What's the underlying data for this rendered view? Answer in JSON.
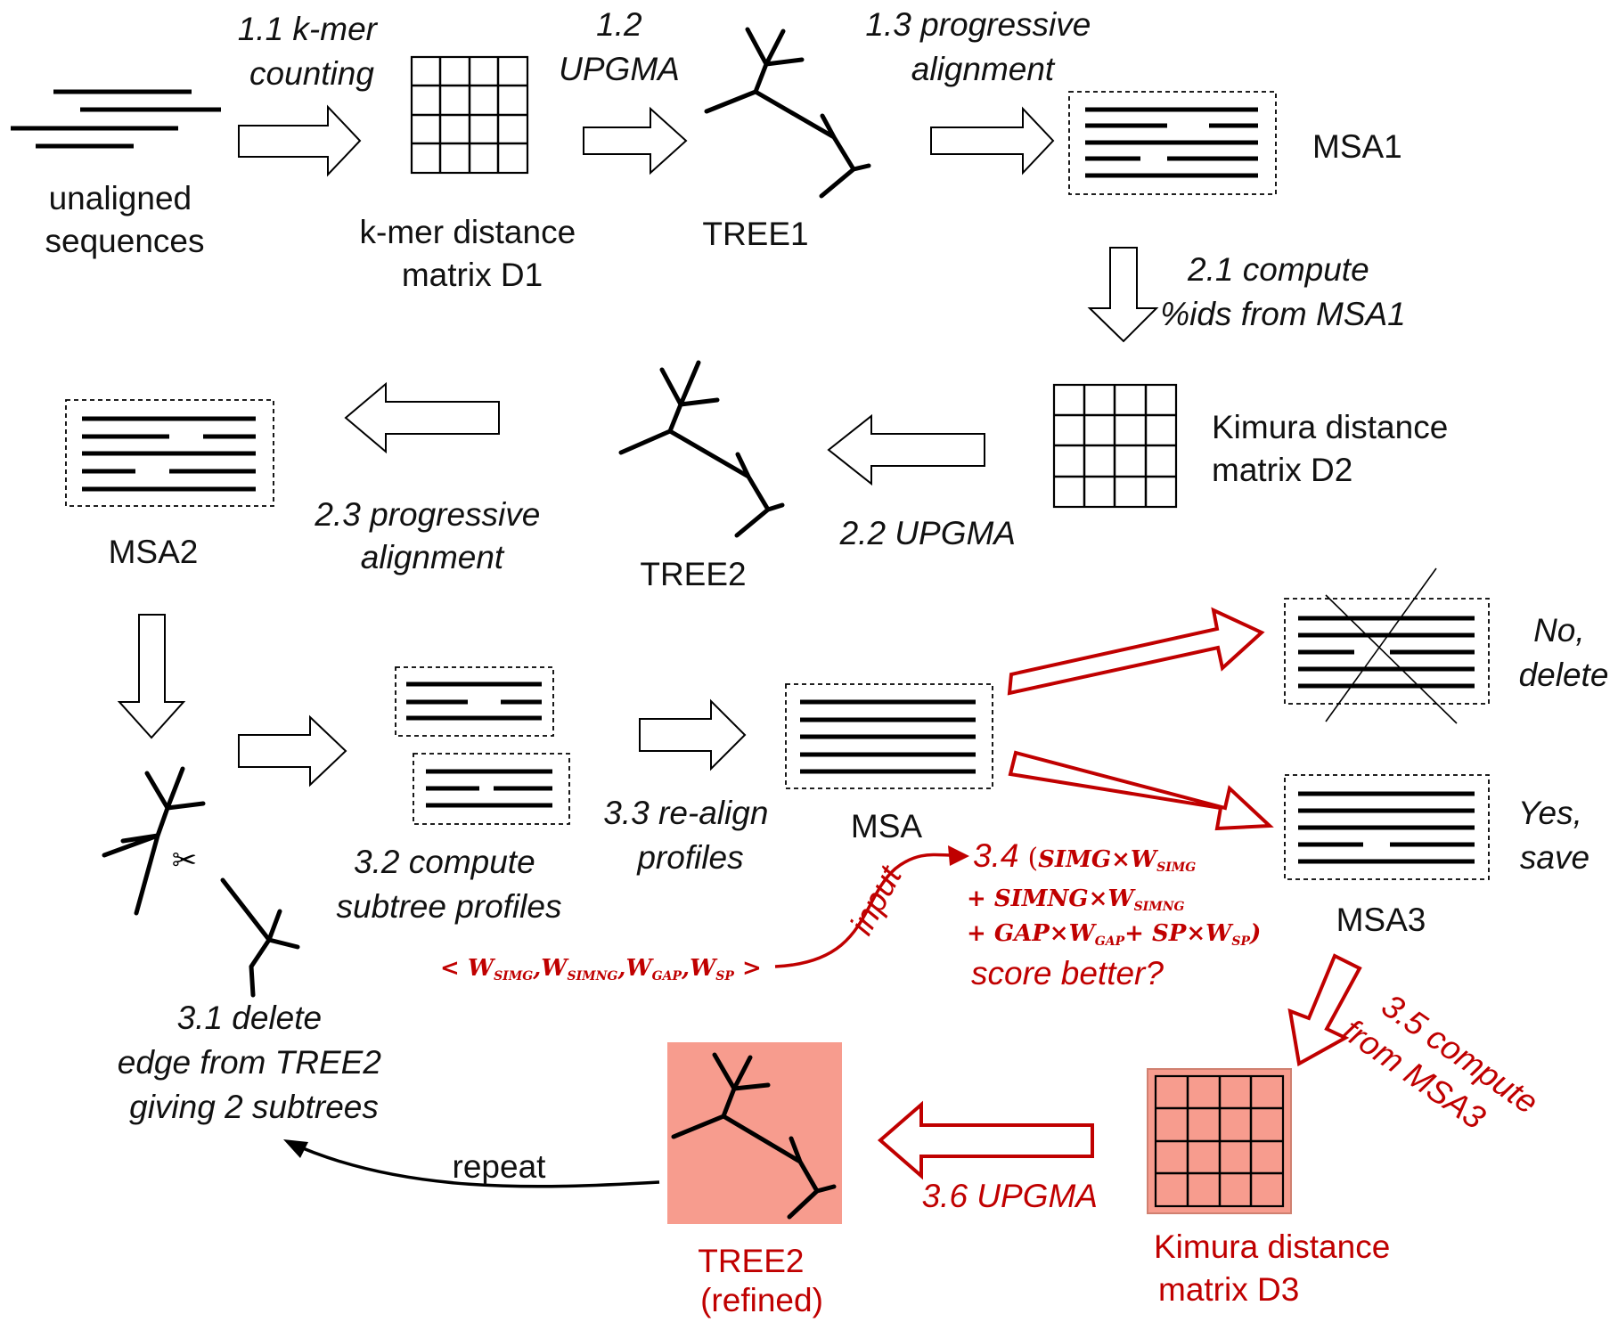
{
  "labels": {
    "unaligned": [
      "unaligned",
      "sequences"
    ],
    "kmer_matrix": [
      "k-mer distance",
      "matrix D1"
    ],
    "tree1": "TREE1",
    "msa1": "MSA1",
    "kimura_d2": [
      "Kimura distance",
      "matrix D2"
    ],
    "tree2": "TREE2",
    "msa2": "MSA2",
    "msa": "MSA",
    "msa3": "MSA3",
    "kimura_d3": [
      "Kimura distance",
      "matrix D3"
    ],
    "tree2_refined": [
      "TREE2",
      "(refined)"
    ],
    "no_delete": [
      "No,",
      "delete"
    ],
    "yes_save": [
      "Yes,",
      "save"
    ],
    "repeat": "repeat",
    "input": "input",
    "scissors": "✂"
  },
  "steps": {
    "s1_1": [
      "1.1 k-mer",
      "counting"
    ],
    "s1_2": [
      "1.2",
      "UPGMA"
    ],
    "s1_3": [
      "1.3 progressive",
      "alignment"
    ],
    "s2_1": [
      "2.1 compute",
      " %ids from MSA1"
    ],
    "s2_2": "2.2 UPGMA",
    "s2_3": [
      "2.3 progressive",
      "alignment"
    ],
    "s3_1": [
      "3.1 delete",
      "edge from TREE2",
      "giving 2 subtrees"
    ],
    "s3_2": [
      "3.2 compute",
      "subtree profiles"
    ],
    "s3_3": [
      "3.3 re-align",
      "profiles"
    ],
    "s3_4_prefix": "3.4",
    "s3_4_tail": "score better?",
    "s3_5": [
      "3.5 compute",
      "from MSA3"
    ],
    "s3_6": "3.6 UPGMA"
  },
  "formula": {
    "open": "(",
    "close": ")",
    "plus": "+",
    "times": "×",
    "terms": [
      {
        "name": "SIMG",
        "weight": "W",
        "sub": "SIMG"
      },
      {
        "name": "SIMNG",
        "weight": "W",
        "sub": "SIMNG"
      },
      {
        "name": "GAP",
        "weight": "W",
        "sub": "GAP"
      },
      {
        "name": "SP",
        "weight": "W",
        "sub": "SP"
      }
    ]
  },
  "weights_vector": {
    "lt": "<",
    "gt": ">",
    "comma": ",",
    "items": [
      {
        "w": "W",
        "sub": "SIMG"
      },
      {
        "w": "W",
        "sub": "SIMNG"
      },
      {
        "w": "W",
        "sub": "GAP"
      },
      {
        "w": "W",
        "sub": "SP"
      }
    ]
  },
  "colors": {
    "accent_red": "#c00000",
    "highlight_fill": "#f79c8e",
    "line": "#000000"
  }
}
